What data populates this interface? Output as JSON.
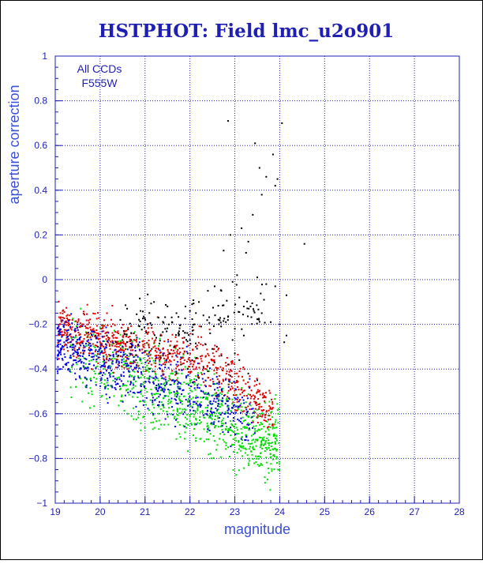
{
  "chart_data": {
    "type": "scatter",
    "title": "HSTPHOT: Field lmc_u2o901",
    "xlabel": "magnitude",
    "ylabel": "aperture correction",
    "xlim": [
      19,
      28
    ],
    "ylim": [
      -1,
      1
    ],
    "xticks": [
      "19",
      "20",
      "21",
      "22",
      "23",
      "24",
      "25",
      "26",
      "27",
      "28"
    ],
    "yticks": [
      "1",
      "0.8",
      "0.6",
      "0.4",
      "0.2",
      "0",
      "-0.2",
      "-0.4",
      "-0.6",
      "-0.8",
      "-1"
    ],
    "grid": true,
    "legend": {
      "placement": "top-left",
      "lines": [
        "All CCDs",
        "F555W"
      ]
    },
    "series": [
      {
        "color": "#000000",
        "x": [
          22.85,
          23.45,
          24.05,
          23.85,
          23.7,
          23.9,
          23.6,
          23.55,
          23.95,
          23.4,
          22.9,
          23.15,
          23.3,
          22.75,
          23.25,
          23.05,
          23.5,
          23.7,
          24.55,
          24.15,
          23.1,
          22.55,
          22.4,
          22.2,
          21.9,
          22.0,
          21.7,
          21.5,
          21.2,
          20.9,
          20.6,
          22.65,
          22.3,
          23.35,
          23.65,
          24.0,
          22.1,
          21.6,
          21.3,
          23.0,
          22.8,
          22.45,
          22.25,
          21.85,
          21.45,
          21.05,
          20.75,
          20.45,
          22.95,
          23.2,
          23.6,
          23.8,
          24.1,
          22.6,
          22.0,
          21.75,
          21.25,
          20.6,
          23.0,
          22.7,
          22.5,
          22.35,
          22.15,
          21.95,
          21.65,
          21.4,
          21.15,
          20.85,
          20.5,
          20.15,
          23.1,
          22.85,
          22.55,
          22.3,
          22.05,
          21.8,
          21.55,
          21.35,
          21.0,
          20.7,
          20.35,
          19.9,
          23.5,
          23.3,
          22.9,
          22.65,
          22.4,
          22.2,
          21.95,
          21.7,
          21.45,
          21.1,
          20.8,
          20.4,
          19.95,
          23.2,
          24.15,
          23.9,
          22.95,
          22.7
        ],
        "y": [
          0.71,
          0.61,
          0.7,
          0.56,
          0.46,
          0.42,
          0.38,
          0.5,
          0.45,
          0.29,
          0.2,
          0.23,
          0.17,
          0.13,
          0.12,
          0.02,
          0.01,
          -0.02,
          0.16,
          -0.07,
          -0.08,
          -0.03,
          -0.05,
          -0.1,
          -0.12,
          -0.14,
          -0.15,
          -0.12,
          -0.1,
          -0.14,
          -0.13,
          -0.18,
          -0.16,
          -0.12,
          -0.09,
          -0.2,
          -0.2,
          -0.19,
          -0.17,
          -0.22,
          -0.19,
          -0.24,
          -0.21,
          -0.23,
          -0.22,
          -0.2,
          -0.24,
          -0.18,
          -0.27,
          -0.25,
          -0.15,
          -0.19,
          -0.28,
          -0.3,
          -0.27,
          -0.25,
          -0.26,
          -0.28,
          -0.33,
          -0.34,
          -0.31,
          -0.29,
          -0.35,
          -0.33,
          -0.3,
          -0.34,
          -0.31,
          -0.29,
          -0.27,
          -0.25,
          -0.36,
          -0.38,
          -0.37,
          -0.39,
          -0.36,
          -0.38,
          -0.33,
          -0.35,
          -0.32,
          -0.3,
          -0.28,
          -0.25,
          -0.45,
          -0.42,
          -0.43,
          -0.46,
          -0.41,
          -0.44,
          -0.4,
          -0.42,
          -0.38,
          -0.4,
          -0.36,
          -0.34,
          -0.3,
          -0.12,
          -0.25,
          -0.03,
          -0.01,
          -0.05
        ]
      }
    ]
  }
}
